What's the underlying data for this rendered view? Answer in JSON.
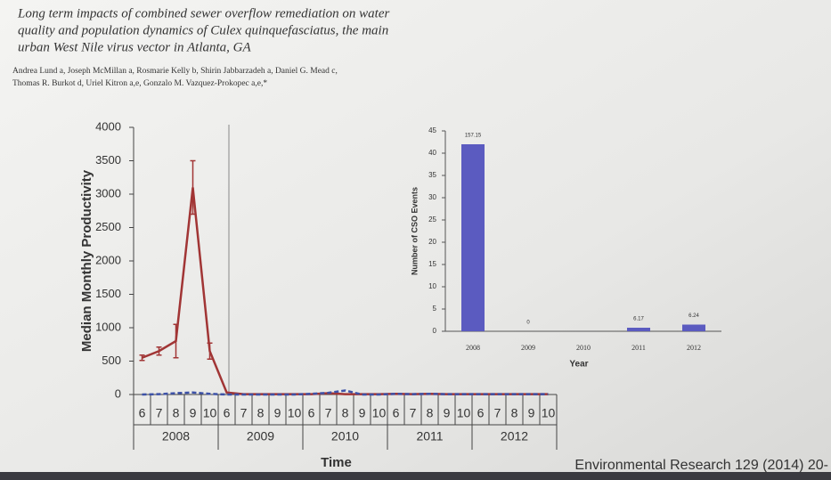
{
  "header": {
    "title": [
      "Long term impacts of combined sewer overflow remediation on water",
      "quality and population dynamics of Culex quinquefasciatus, the main",
      "urban West Nile virus vector in Atlanta, GA"
    ],
    "authors": [
      "Andrea Lund a, Joseph McMillan a, Rosmarie Kelly b, Shirin Jabbarzadeh a, Daniel G. Mead c,",
      "Thomas R. Burkot d, Uriel Kitron a,e, Gonzalo M. Vazquez-Prokopec a,e,*"
    ]
  },
  "chart_data": [
    {
      "type": "line",
      "y_label": "Median Monthly Productivity",
      "x_label": "Time",
      "categories": [
        "6",
        "7",
        "8",
        "9",
        "10",
        "6",
        "7",
        "8",
        "9",
        "10",
        "6",
        "7",
        "8",
        "9",
        "10",
        "6",
        "7",
        "8",
        "9",
        "10",
        "6",
        "7",
        "8",
        "9",
        "10"
      ],
      "groups": [
        "2008",
        "2009",
        "2010",
        "2011",
        "2012"
      ],
      "ylim": [
        0,
        4000
      ],
      "yticks": [
        0,
        500,
        1000,
        1500,
        2000,
        2500,
        3000,
        3500,
        4000
      ],
      "series": [
        {
          "color": "#a13535",
          "dashed": false,
          "values": [
            550,
            650,
            800,
            3100,
            650,
            30,
            5,
            5,
            5,
            5,
            5,
            20,
            5,
            5,
            5,
            10,
            5,
            10,
            5,
            5,
            5,
            5,
            5,
            5,
            5
          ],
          "errors": [
            40,
            60,
            250,
            400,
            120,
            null,
            null,
            null,
            null,
            null,
            null,
            null,
            null,
            null,
            null,
            null,
            null,
            null,
            null,
            null,
            null,
            null,
            null,
            null,
            null
          ]
        },
        {
          "color": "#3d52a8",
          "dashed": true,
          "values": [
            0,
            5,
            20,
            30,
            10,
            0,
            0,
            0,
            0,
            0,
            10,
            25,
            60,
            0,
            0,
            10,
            5,
            10,
            5,
            5,
            5,
            5,
            5,
            5,
            5
          ]
        }
      ]
    },
    {
      "type": "bar",
      "y_label": "Number of CSO Events",
      "x_label": "Year",
      "categories": [
        "2008",
        "2009",
        "2010",
        "2011",
        "2012"
      ],
      "values": [
        42,
        0,
        0,
        0.8,
        1.5
      ],
      "color": "#5b5bc0",
      "annotations": [
        "157.15",
        "0",
        null,
        "6.17",
        "6.24"
      ],
      "ylim": [
        0,
        45
      ],
      "yticks": [
        0,
        5,
        10,
        15,
        20,
        25,
        30,
        35,
        40,
        45
      ]
    }
  ],
  "footer": {
    "citation": "Environmental Research 129 (2014) 20-"
  }
}
